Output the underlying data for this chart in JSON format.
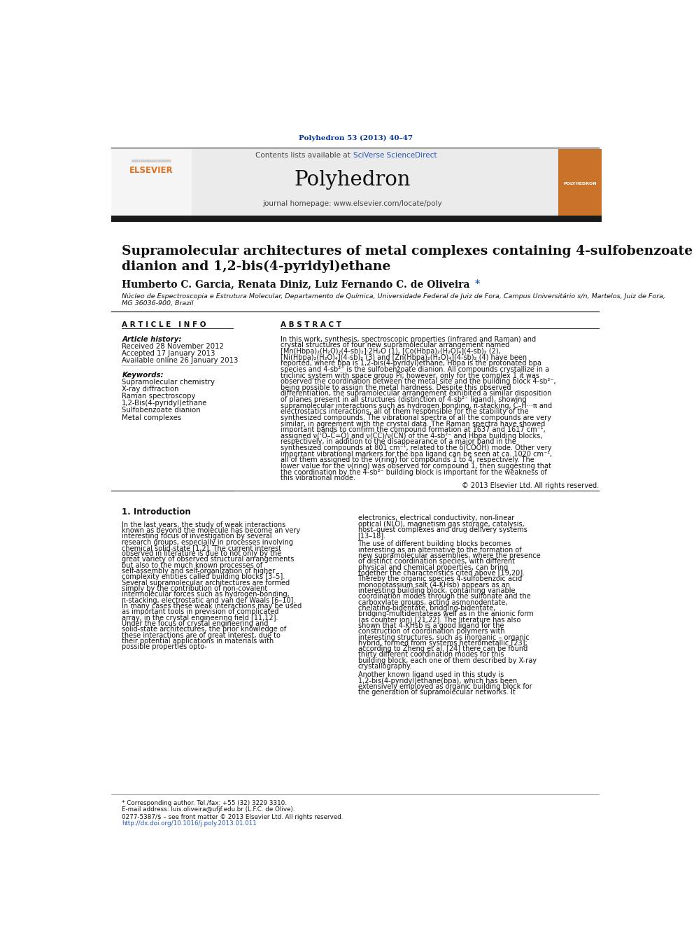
{
  "journal_ref": "Polyhedron 53 (2013) 40–47",
  "journal_name": "Polyhedron",
  "contents_text": "Contents lists available at ",
  "sciverse_text": "SciVerse ScienceDirect",
  "homepage_text": "journal homepage: www.elsevier.com/locate/poly",
  "title_line1": "Supramolecular architectures of metal complexes containing 4-sulfobenzoate",
  "title_line2": "dianion and 1,2-bis(4-pyridyl)ethane",
  "authors": "Humberto C. Garcia, Renata Diniz, Luiz Fernando C. de Oliveira ",
  "affiliation_line1": "Núcleo de Espectroscopia e Estrutura Molecular, Departamento de Química, Universidade Federal de Juiz de Fora, Campus Universitário s/n, Martelos, Juiz de Fora,",
  "affiliation_line2": "MG 36036-900, Brazil",
  "article_info_title": "A R T I C L E   I N F O",
  "article_history_label": "Article history:",
  "received": "Received 28 November 2012",
  "accepted": "Accepted 17 January 2013",
  "available": "Available online 26 January 2013",
  "keywords_label": "Keywords:",
  "keywords": [
    "Supramolecular chemistry",
    "X-ray diffraction",
    "Raman spectroscopy",
    "1,2-Bis(4-pyridyl)ethane",
    "Sulfobenzoate dianion",
    "Metal complexes"
  ],
  "abstract_title": "A B S T R A C T",
  "abstract_text": "In this work, synthesis, spectroscopic properties (infrared and Raman) and crystal structures of four new supramolecular arrangement named [Mn(Hbpa)₂(H₂O)₂(4-sb)₂]·2H₂O (1), [Co(Hbpa)₂(H₂O)₄](4-sb)₂ (2), [Ni(Hbpa)₂(H₂O)₄](4-sb)₂ (3) and [Zn(Hbpa)₂(H₂O)₄](4-sb)₂ (4) have been reported, where bpa is 1,2-bis(4-pyridyl)ethane, Hbpa is the protonated bpa species and 4-sb²⁻ is the sulfobenzoate dianion. All compounds crystallize in a triclinic system with space group Pī; however, only for the complex 1 it was observed the coordination between the metal site and the building block 4-sb²⁻, being possible to assign the metal hardness. Despite this observed differentiation, the supramolecular arrangement exhibited a similar disposition of planes present in all structures (distinction of 4-sb²⁻ ligand), showing supramolecular interactions such as hydrogen bonding, π-stacking, C–H···π and electrostatics interactions, all of them responsible for the stability of the synthesized compounds. The vibrational spectra of all the compounds are very similar, in agreement with the crystal data. The Raman spectra have showed important bands to confirm the compound formation at 1637 and 1617 cm⁻¹, assigned ν(ʿO–C=O) and ν(CC)/ν(CN) of the 4-sb²⁻ and Hbpa building blocks, respectively, in addition to the disappearance of a major band in the synthesized compounds at 801 cm⁻¹, related to the δ(COOH) mode. Other very important vibrational markers for the bpa ligand can be seen at ca. 1020 cm⁻¹, all of them assigned to the ν(ring) for compounds 1 to 4, respectively. The lower value for the ν(ring) was observed for compound 1, then suggesting that the coordination by the 4-sb²⁻ building block is important for the weakness of this vibrational mode.",
  "abstract_copyright": "© 2013 Elsevier Ltd. All rights reserved.",
  "intro_title": "1. Introduction",
  "intro_col1": "In the last years, the study of weak interactions known as beyond the molecule has become an very interesting focus of investigation by several research groups, especially in processes involving chemical solid-state [1,2]. The current interest observed in literature is due to not only by the great variety of observed structural arrangements but also to the much known processes of self-assembly and self-organization of higher complexity entities called building blocks [3–5]. Several supramolecular architectures are formed simply by the contribution of non-covalent intermolecular forces such as hydrogen-bonding, π-stacking, electrostatic and van der Waals [6–10]. In many cases these weak interactions may be used as important tools in prevision of complicated array, in the crystal engineering field [11,12]. Under the focus of crystal engineering and solid-state architectures, the prior knowledge of these interactions are of great interest, due to their potential applications in materials with possible properties opto-",
  "intro_col2": "electronics, electrical conductivity, non-linear optical (NLO), magnetism gas storage, catalysis, host–guest complexes and drug delivery systems [13–18].\n\nThe use of different building blocks becomes interesting as an alternative to the formation of new supramolecular assemblies, where the presence of distinct coordination species, with different physical and chemical properties, can bring together the characteristics cited above [19,20]. Thereby the organic species 4-sulfobenzoic acid monopotassium salt (4-KHsb) appears as an interesting building block, containing variable coordination modes through the sulfonate and the carboxylate groups, acting asmonodentate, chelating-bidentate, bridging-bidentate, bridging-multidentateas well as in the anionic form (as counter ion) [21,22]. The literature has also shown that 4-KHsb is a good ligand for the construction of coordination polymers with interesting structures, such as inorganic – organic hybrid, formed from systems heterometallic [23]; according to Zheng et al. [24] there can be found thirty different coordination modes for this building block, each one of them described by X-ray crystallography.\n\nAnother known ligand used in this study is 1,2-bis(4-pyridyl)ethane(bpa), which has been extensively employed as organic building block for the generation of supramolecular networks. It",
  "footer_note": "* Corresponding author. Tel./fax: +55 (32) 3229 3310.",
  "footer_email": "E-mail address: luis.oliveira@ufjf.edu.br (L.F.C. de Olive).",
  "footer_issn": "0277-5387/$ – see front matter © 2013 Elsevier Ltd. All rights reserved.",
  "footer_doi": "http://dx.doi.org/10.1016/j.poly.2013.01.011",
  "bg_color": "#ffffff",
  "black_bar_color": "#1a1a1a",
  "blue_text_color": "#003399",
  "orange_color": "#e07020",
  "link_color": "#2255bb",
  "dark_text": "#111111"
}
